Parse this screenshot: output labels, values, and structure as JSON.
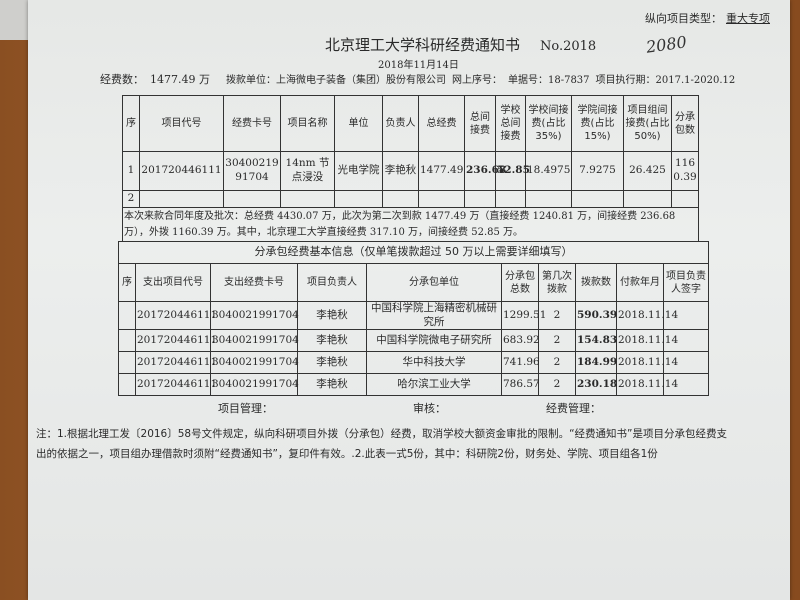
{
  "header": {
    "project_type_label": "纵向项目类型：",
    "project_type_value": "重大专项",
    "title": "北京理工大学科研经费通知书",
    "number": "No.2018",
    "handwritten_number": "2080",
    "date": "2018年11月14日",
    "funding_label": "经费数：",
    "funding_value": "1477.49 万",
    "payer": "拨款单位：上海微电子装备（集团）股份有限公司",
    "online_seq": "网上序号：",
    "receipt_no": "单据号：18-7837",
    "period": "项目执行期：2017.1-2020.12"
  },
  "main_table": {
    "headers": [
      "序",
      "项目代号",
      "经费卡号",
      "项目名称",
      "单位",
      "负责人",
      "总经费",
      "总间接费",
      "学校总间接费",
      "学校间接费(占比35%)",
      "学院间接费(占比15%)",
      "项目组间接费(占比50%)",
      "分承包数"
    ],
    "rows": [
      [
        "1",
        "201720446111",
        "3040021991704",
        "14nm 节点浸没",
        "光电学院",
        "李艳秋",
        "1477.49",
        "236.68",
        "52.85",
        "18.4975",
        "7.9275",
        "26.425",
        "1160.39"
      ],
      [
        "2",
        "",
        "",
        "",
        "",
        "",
        "",
        "",
        "",
        "",
        "",
        "",
        ""
      ]
    ],
    "summary": "本次来款合同年度及批次：总经费 4430.07 万，此次为第二次到款 1477.49 万（直接经费 1240.81 万，间接经费 236.68 万），外拨 1160.39 万。其中，北京理工大学直接经费 317.10 万，间接经费 52.85 万。"
  },
  "sub_table": {
    "title": "分承包经费基本信息（仅单笔拨款超过 50 万以上需要详细填写）",
    "headers": [
      "序",
      "支出项目代号",
      "支出经费卡号",
      "项目负责人",
      "分承包单位",
      "分承包总数",
      "第几次拨款",
      "拨款数",
      "付款年月",
      "项目负责人签字"
    ],
    "rows": [
      [
        "",
        "201720446111",
        "3040021991704",
        "李艳秋",
        "中国科学院上海精密机械研究所",
        "1299.51",
        "2",
        "590.39",
        "2018.11.14",
        ""
      ],
      [
        "",
        "201720446111",
        "3040021991704",
        "李艳秋",
        "中国科学院微电子研究所",
        "683.92",
        "2",
        "154.83",
        "2018.11.14",
        ""
      ],
      [
        "",
        "201720446111",
        "3040021991704",
        "李艳秋",
        "华中科技大学",
        "741.96",
        "2",
        "184.99",
        "2018.11.14",
        ""
      ],
      [
        "",
        "201720446111",
        "3040021991704",
        "李艳秋",
        "哈尔滨工业大学",
        "786.57",
        "2",
        "230.18",
        "2018.11.14",
        ""
      ]
    ],
    "sign_project": "项目管理：",
    "sign_review": "审核：",
    "sign_finance": "经费管理："
  },
  "note": "注：1.根据北理工发〔2016〕58号文件规定，纵向科研项目外拨（分承包）经费，取消学校大额资金审批的限制。“经费通知书”是项目分承包经费支出的依据之一，项目组办理借款时须附“经费通知书”，复印件有效。.2.此表一式5份，其中：科研院2份，财务处、学院、项目组各1份"
}
